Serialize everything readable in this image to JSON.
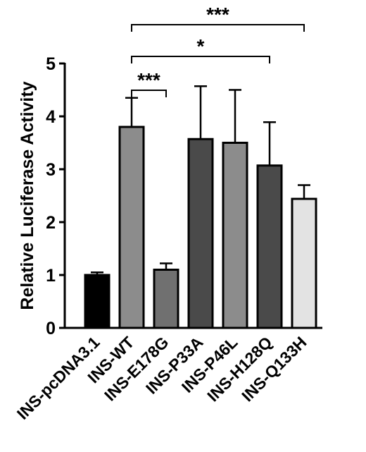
{
  "chart_data": {
    "type": "bar",
    "title": "",
    "xlabel": "",
    "ylabel": "Relative Luciferase Activity",
    "ylim": [
      0,
      5
    ],
    "yticks": [
      0,
      1,
      2,
      3,
      4,
      5
    ],
    "grid": false,
    "categories": [
      "INS-pcDNA3.1",
      "INS-WT",
      "INS-E178G",
      "INS-P33A",
      "INS-P46L",
      "INS-H128Q",
      "INS-Q133H"
    ],
    "values": [
      1.0,
      3.8,
      1.1,
      3.57,
      3.5,
      3.07,
      2.44
    ],
    "error_upper": [
      0.05,
      0.55,
      0.12,
      1.0,
      1.0,
      0.82,
      0.26
    ],
    "colors": [
      "#000000",
      "#8c8c8c",
      "#707070",
      "#4a4a4a",
      "#8c8c8c",
      "#4a4a4a",
      "#e3e3e3"
    ],
    "significance": [
      {
        "from": 1,
        "to": 2,
        "label": "***"
      },
      {
        "from": 1,
        "to": 5,
        "label": "*"
      },
      {
        "from": 1,
        "to": 6,
        "label": "***"
      }
    ]
  }
}
